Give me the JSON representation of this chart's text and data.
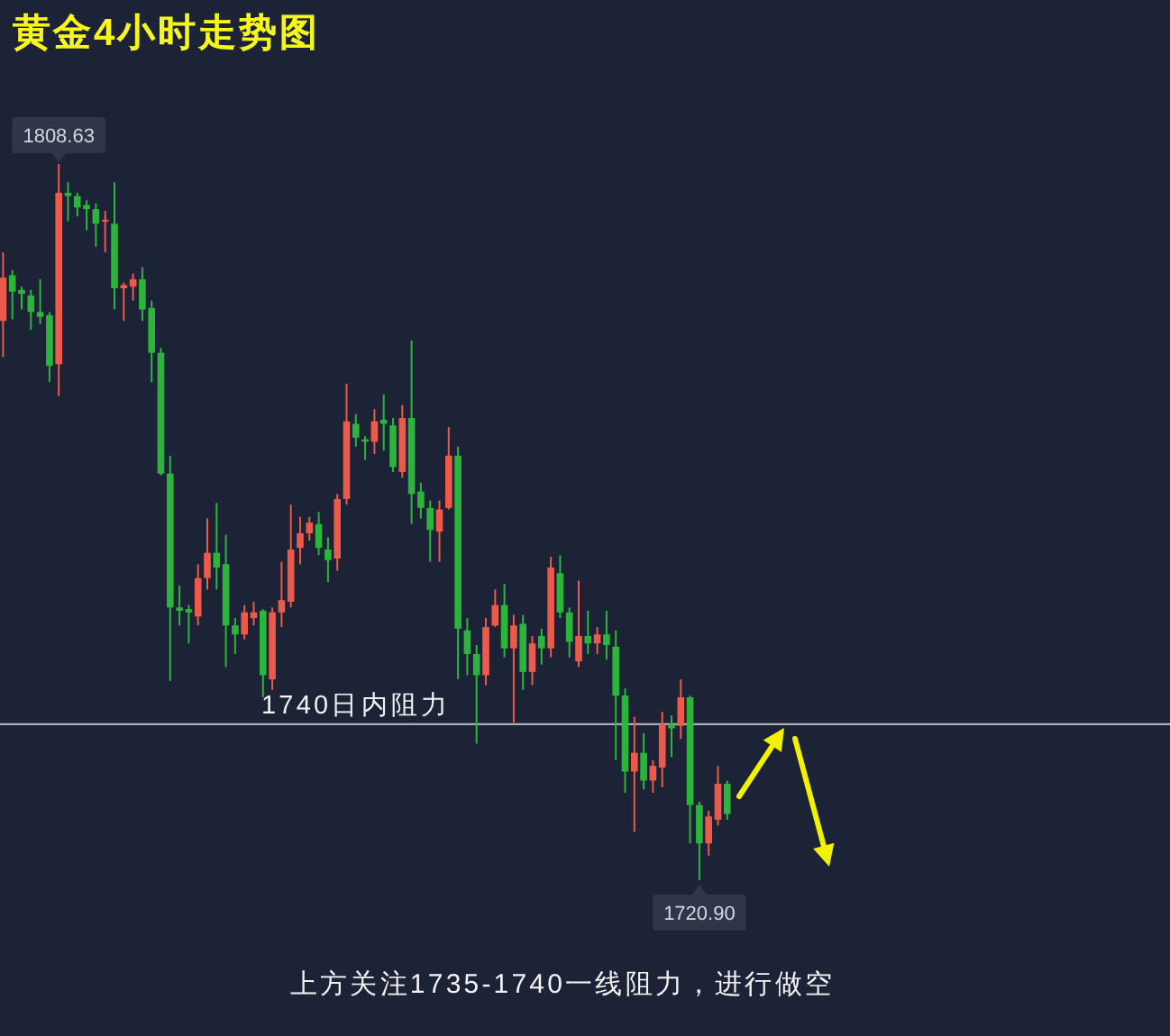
{
  "chart_data": {
    "type": "candlestick",
    "title": "黄金4小时走势图",
    "categories": [
      null,
      null,
      null,
      null,
      null,
      null,
      null,
      null,
      null,
      null,
      null,
      null,
      null,
      null,
      null,
      null,
      null,
      null,
      null,
      null,
      null,
      null,
      null,
      null,
      null,
      null,
      null,
      null,
      null,
      null,
      null,
      null,
      null,
      null,
      null,
      null,
      null,
      null,
      null,
      null,
      null,
      null,
      null,
      null,
      null,
      null,
      null,
      null,
      null,
      null,
      null,
      null,
      null,
      null,
      null,
      null,
      null,
      null,
      null,
      null,
      null,
      null,
      null,
      null,
      null,
      null,
      null,
      null,
      null,
      null,
      null,
      null,
      null,
      null,
      null,
      null,
      null,
      null,
      null
    ],
    "ohlc": [
      [
        1789.4,
        1797.8,
        1785.0,
        1794.7
      ],
      [
        1795.0,
        1795.6,
        1789.6,
        1793.0
      ],
      [
        1793.2,
        1793.6,
        1790.8,
        1792.7
      ],
      [
        1792.5,
        1793.2,
        1788.3,
        1790.5
      ],
      [
        1790.5,
        1794.5,
        1789.0,
        1789.9
      ],
      [
        1790.1,
        1790.5,
        1781.9,
        1783.9
      ],
      [
        1784.1,
        1808.63,
        1780.2,
        1805.1
      ],
      [
        1805.1,
        1806.4,
        1801.6,
        1804.7
      ],
      [
        1804.7,
        1805.1,
        1802.2,
        1803.3
      ],
      [
        1803.6,
        1804.2,
        1800.5,
        1803.1
      ],
      [
        1803.1,
        1803.8,
        1798.5,
        1801.3
      ],
      [
        1801.6,
        1802.9,
        1797.8,
        1801.8
      ],
      [
        1801.3,
        1806.4,
        1790.8,
        1793.4
      ],
      [
        1793.4,
        1794.1,
        1789.4,
        1793.8
      ],
      [
        1793.6,
        1795.2,
        1791.9,
        1794.5
      ],
      [
        1794.5,
        1796.0,
        1789.4,
        1790.8
      ],
      [
        1791.0,
        1791.9,
        1781.9,
        1785.5
      ],
      [
        1785.5,
        1786.1,
        1770.5,
        1770.7
      ],
      [
        1770.7,
        1772.9,
        1745.3,
        1754.3
      ],
      [
        1754.3,
        1757.0,
        1752.1,
        1753.9
      ],
      [
        1754.1,
        1754.6,
        1749.9,
        1753.7
      ],
      [
        1753.2,
        1759.6,
        1752.1,
        1757.9
      ],
      [
        1757.9,
        1765.2,
        1756.5,
        1761.0
      ],
      [
        1761.0,
        1767.1,
        1756.5,
        1759.2
      ],
      [
        1759.6,
        1763.2,
        1747.0,
        1752.1
      ],
      [
        1752.1,
        1753.0,
        1748.6,
        1751.0
      ],
      [
        1751.0,
        1754.6,
        1750.4,
        1753.7
      ],
      [
        1753.0,
        1755.0,
        1752.1,
        1753.7
      ],
      [
        1753.9,
        1754.1,
        1743.3,
        1746.0
      ],
      [
        1745.5,
        1754.3,
        1744.2,
        1753.7
      ],
      [
        1753.7,
        1759.9,
        1751.9,
        1755.2
      ],
      [
        1755.0,
        1766.9,
        1754.3,
        1761.4
      ],
      [
        1761.6,
        1765.4,
        1759.6,
        1763.4
      ],
      [
        1763.4,
        1765.4,
        1762.5,
        1764.7
      ],
      [
        1764.5,
        1766.0,
        1760.7,
        1761.6
      ],
      [
        1761.4,
        1762.9,
        1757.4,
        1760.1
      ],
      [
        1760.3,
        1768.2,
        1758.8,
        1767.6
      ],
      [
        1767.6,
        1781.7,
        1766.9,
        1777.1
      ],
      [
        1776.8,
        1778.0,
        1774.0,
        1775.1
      ],
      [
        1774.9,
        1775.3,
        1772.4,
        1774.6
      ],
      [
        1774.6,
        1778.6,
        1773.1,
        1777.1
      ],
      [
        1777.3,
        1780.4,
        1773.5,
        1776.8
      ],
      [
        1776.6,
        1777.5,
        1770.9,
        1771.5
      ],
      [
        1770.9,
        1779.1,
        1770.2,
        1777.5
      ],
      [
        1777.5,
        1787.0,
        1764.5,
        1768.2
      ],
      [
        1768.5,
        1769.6,
        1765.2,
        1766.5
      ],
      [
        1766.5,
        1767.4,
        1759.9,
        1763.8
      ],
      [
        1763.6,
        1767.4,
        1759.9,
        1766.3
      ],
      [
        1766.5,
        1776.4,
        1766.3,
        1772.9
      ],
      [
        1772.9,
        1774.0,
        1745.5,
        1751.7
      ],
      [
        1751.5,
        1753.0,
        1746.0,
        1748.6
      ],
      [
        1748.6,
        1749.7,
        1737.6,
        1746.0
      ],
      [
        1746.0,
        1753.0,
        1744.8,
        1751.9
      ],
      [
        1752.1,
        1756.5,
        1751.9,
        1754.6
      ],
      [
        1754.6,
        1757.2,
        1748.2,
        1749.3
      ],
      [
        1749.3,
        1753.4,
        1740.2,
        1752.1
      ],
      [
        1752.3,
        1753.4,
        1744.2,
        1746.4
      ],
      [
        1746.4,
        1750.8,
        1744.8,
        1749.9
      ],
      [
        1750.8,
        1751.7,
        1747.3,
        1749.3
      ],
      [
        1749.3,
        1760.5,
        1748.2,
        1759.2
      ],
      [
        1758.5,
        1760.7,
        1753.0,
        1753.7
      ],
      [
        1753.7,
        1754.3,
        1748.2,
        1750.1
      ],
      [
        1747.7,
        1757.6,
        1747.0,
        1750.8
      ],
      [
        1750.8,
        1753.9,
        1748.6,
        1749.9
      ],
      [
        1749.9,
        1751.9,
        1748.6,
        1751.0
      ],
      [
        1751.0,
        1753.9,
        1747.9,
        1749.7
      ],
      [
        1749.5,
        1751.5,
        1735.6,
        1743.5
      ],
      [
        1743.5,
        1744.4,
        1731.6,
        1734.2
      ],
      [
        1734.2,
        1740.9,
        1726.8,
        1736.5
      ],
      [
        1736.5,
        1738.9,
        1732.0,
        1733.1
      ],
      [
        1733.1,
        1735.6,
        1731.6,
        1734.9
      ],
      [
        1734.7,
        1741.5,
        1732.3,
        1740.0
      ],
      [
        1740.0,
        1741.1,
        1736.0,
        1739.5
      ],
      [
        1739.8,
        1745.5,
        1738.2,
        1743.3
      ],
      [
        1743.3,
        1743.5,
        1725.4,
        1730.1
      ],
      [
        1730.1,
        1730.5,
        1720.9,
        1725.4
      ],
      [
        1725.4,
        1729.4,
        1723.9,
        1728.7
      ],
      [
        1728.3,
        1734.9,
        1727.6,
        1732.7
      ],
      [
        1732.7,
        1733.1,
        1728.3,
        1729.0
      ]
    ],
    "colors": [
      "#ec5a4b",
      "#2db43d",
      "#2db43d",
      "#2db43d",
      "#2db43d",
      "#2db43d",
      "#ec5a4b",
      "#2db43d",
      "#2db43d",
      "#2db43d",
      "#2db43d",
      "#ec5a4b",
      "#2db43d",
      "#ec5a4b",
      "#ec5a4b",
      "#2db43d",
      "#2db43d",
      "#2db43d",
      "#2db43d",
      "#2db43d",
      "#2db43d",
      "#ec5a4b",
      "#ec5a4b",
      "#2db43d",
      "#2db43d",
      "#2db43d",
      "#ec5a4b",
      "#ec5a4b",
      "#2db43d",
      "#ec5a4b",
      "#ec5a4b",
      "#ec5a4b",
      "#ec5a4b",
      "#ec5a4b",
      "#2db43d",
      "#2db43d",
      "#ec5a4b",
      "#ec5a4b",
      "#2db43d",
      "#2db43d",
      "#ec5a4b",
      "#2db43d",
      "#2db43d",
      "#ec5a4b",
      "#2db43d",
      "#2db43d",
      "#2db43d",
      "#ec5a4b",
      "#ec5a4b",
      "#2db43d",
      "#2db43d",
      "#2db43d",
      "#ec5a4b",
      "#ec5a4b",
      "#2db43d",
      "#ec5a4b",
      "#2db43d",
      "#ec5a4b",
      "#2db43d",
      "#ec5a4b",
      "#2db43d",
      "#2db43d",
      "#ec5a4b",
      "#2db43d",
      "#ec5a4b",
      "#2db43d",
      "#2db43d",
      "#2db43d",
      "#ec5a4b",
      "#2db43d",
      "#ec5a4b",
      "#ec5a4b",
      "#2db43d",
      "#ec5a4b",
      "#2db43d",
      "#2db43d",
      "#ec5a4b",
      "#ec5a4b",
      "#2db43d"
    ],
    "ref_lines": [
      {
        "axis": "y",
        "value": 1740,
        "label": "1740日内阻力",
        "color": "#a9aeb9"
      }
    ],
    "annotations": [
      {
        "text": "1808.63",
        "y": 1808.63
      },
      {
        "text": "1720.90",
        "y": 1720.9
      },
      "上方关注1735-1740一线阻力，进行做空"
    ]
  }
}
